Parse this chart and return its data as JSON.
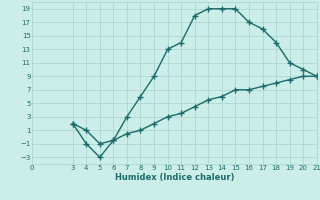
{
  "xlabel": "Humidex (Indice chaleur)",
  "ylabel": "",
  "bg_color": "#cceee8",
  "grid_color": "#b0d8d0",
  "line_color": "#1a6b6b",
  "line1_x": [
    3,
    4,
    5,
    6,
    7,
    8,
    9,
    10,
    11,
    12,
    13,
    14,
    15,
    16,
    17,
    18,
    19,
    20,
    21
  ],
  "line1_y": [
    2,
    -1,
    -3,
    -0.5,
    3,
    6,
    9,
    13,
    14,
    18,
    19,
    19,
    19,
    17,
    16,
    14,
    11,
    10,
    9
  ],
  "line2_x": [
    3,
    4,
    5,
    6,
    7,
    8,
    9,
    10,
    11,
    12,
    13,
    14,
    15,
    16,
    17,
    18,
    19,
    20,
    21
  ],
  "line2_y": [
    2,
    1,
    -1,
    -0.5,
    0.5,
    1,
    2,
    3,
    3.5,
    4.5,
    5.5,
    6,
    7,
    7,
    7.5,
    8,
    8.5,
    9,
    9
  ],
  "xlim": [
    0,
    21
  ],
  "ylim": [
    -4,
    20
  ],
  "xticks": [
    0,
    3,
    4,
    5,
    6,
    7,
    8,
    9,
    10,
    11,
    12,
    13,
    14,
    15,
    16,
    17,
    18,
    19,
    20,
    21
  ],
  "yticks": [
    -3,
    -1,
    1,
    3,
    5,
    7,
    9,
    11,
    13,
    15,
    17,
    19
  ],
  "marker": "+",
  "markersize": 4,
  "linewidth": 1.0
}
